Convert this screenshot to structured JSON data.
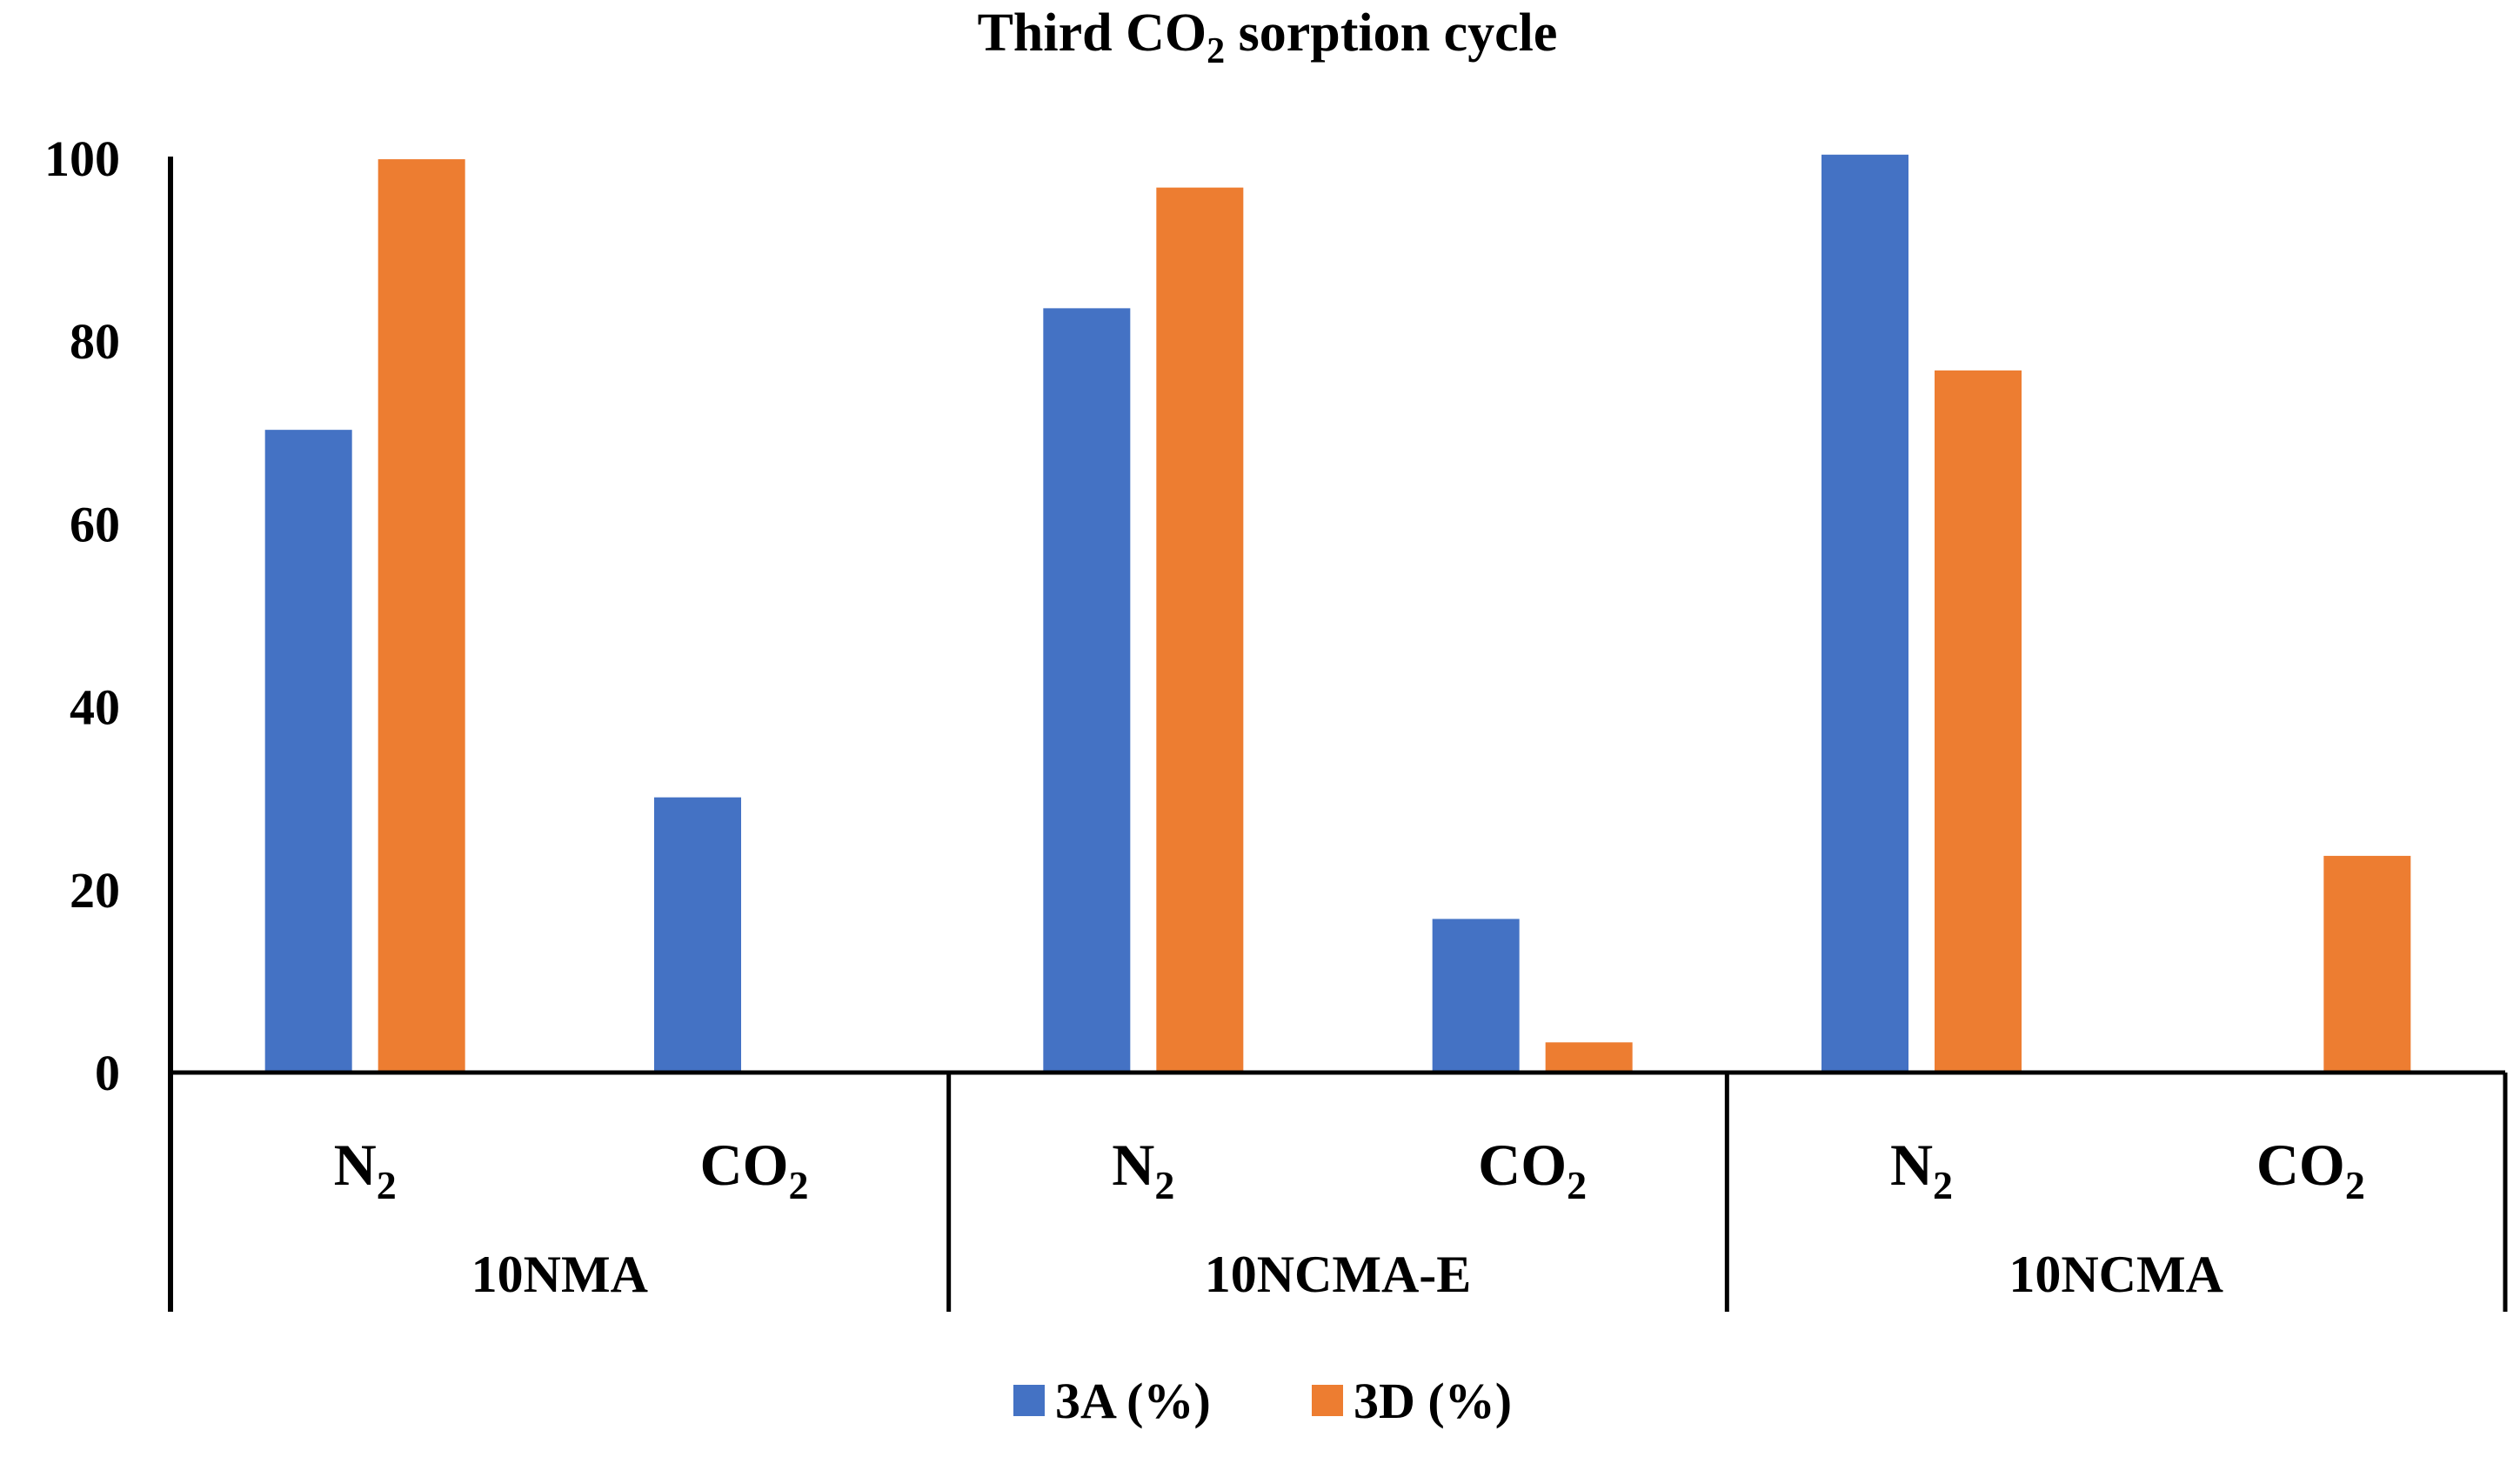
{
  "chart_data": {
    "type": "bar",
    "title": {
      "pre": "Third CO",
      "sub": "2",
      "post": " sorption cycle"
    },
    "groups": [
      "10NMA",
      "10NCMA-E",
      "10NCMA"
    ],
    "subcategories": [
      {
        "base": "N",
        "sub": "2"
      },
      {
        "base": "CO",
        "sub": "2"
      }
    ],
    "series": [
      {
        "name": "3A (%)",
        "color": "#4472C4",
        "values": [
          [
            70.3,
            30.1
          ],
          [
            83.6,
            16.8
          ],
          [
            100.4,
            0
          ]
        ]
      },
      {
        "name": "3D (%)",
        "color": "#ED7D31",
        "values": [
          [
            99.9,
            0
          ],
          [
            96.8,
            3.3
          ],
          [
            76.8,
            23.7
          ]
        ]
      }
    ],
    "ylim": [
      0,
      100
    ],
    "yticks": [
      0,
      20,
      40,
      60,
      80,
      100
    ],
    "grid": false,
    "legend_position": "bottom"
  }
}
